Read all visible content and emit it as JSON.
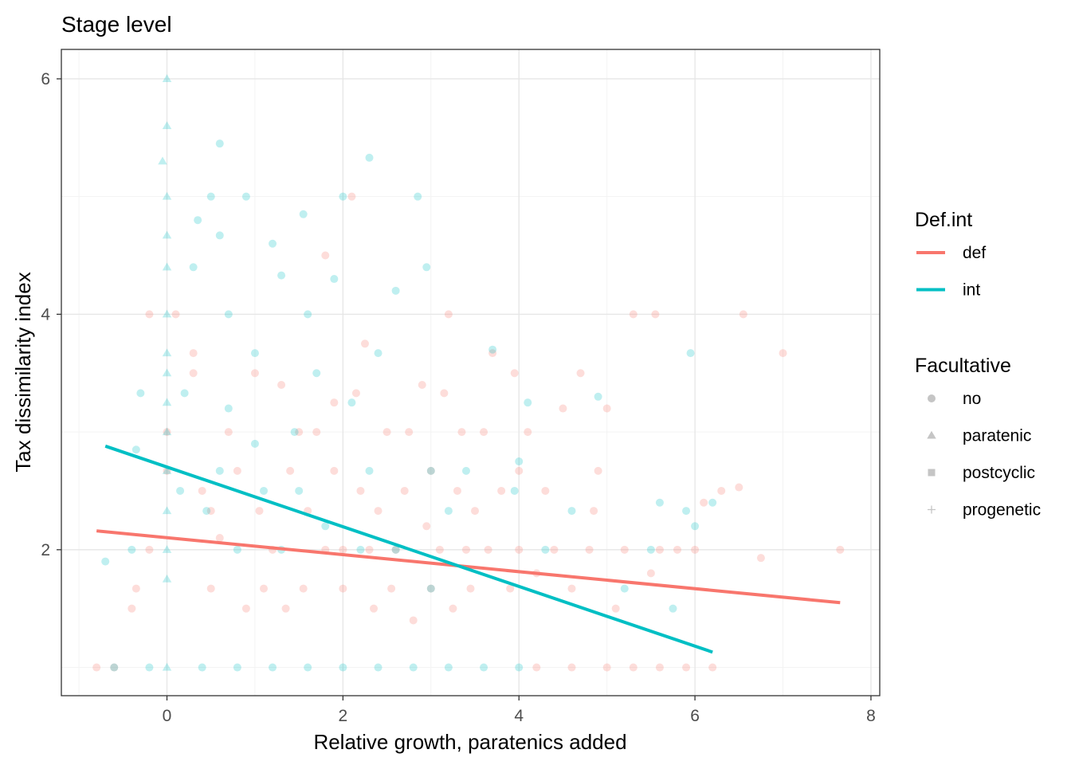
{
  "chart_data": {
    "type": "scatter",
    "title": "Stage level",
    "xlabel": "Relative growth, paratenics added",
    "ylabel": "Tax dissimilarity index",
    "xlim": [
      -1.2,
      8.1
    ],
    "ylim": [
      0.76,
      6.25
    ],
    "x_ticks": [
      0,
      2,
      4,
      6,
      8
    ],
    "y_ticks": [
      2,
      4,
      6
    ],
    "grid": true,
    "legend_position": "right",
    "colors": {
      "def": "#F8766D",
      "int": "#00BFC4"
    },
    "legends": [
      {
        "title": "Def.int",
        "type": "color",
        "entries": [
          {
            "label": "def",
            "key": "def"
          },
          {
            "label": "int",
            "key": "int"
          }
        ]
      },
      {
        "title": "Facultative",
        "type": "shape",
        "entries": [
          {
            "label": "no",
            "shape": "circle"
          },
          {
            "label": "paratenic",
            "shape": "triangle"
          },
          {
            "label": "postcyclic",
            "shape": "square"
          },
          {
            "label": "progenetic",
            "shape": "plus"
          }
        ]
      }
    ],
    "series": [
      {
        "name": "def",
        "trend": {
          "x": [
            -0.8,
            7.65
          ],
          "y": [
            2.16,
            1.55
          ]
        },
        "points": [
          [
            -0.8,
            1.0
          ],
          [
            -0.6,
            1.0
          ],
          [
            -0.4,
            1.5
          ],
          [
            -0.35,
            1.67
          ],
          [
            -0.2,
            2.0
          ],
          [
            -0.2,
            4.0
          ],
          [
            0.0,
            3.0
          ],
          [
            0.0,
            2.67
          ],
          [
            0.1,
            4.0
          ],
          [
            0.3,
            3.67
          ],
          [
            0.3,
            3.5
          ],
          [
            0.4,
            2.5
          ],
          [
            0.5,
            2.33
          ],
          [
            0.5,
            1.67
          ],
          [
            0.6,
            2.1
          ],
          [
            0.7,
            3.0
          ],
          [
            0.8,
            2.67
          ],
          [
            0.9,
            1.5
          ],
          [
            1.0,
            3.5
          ],
          [
            1.05,
            2.33
          ],
          [
            1.1,
            1.67
          ],
          [
            1.2,
            2.0
          ],
          [
            1.3,
            3.4
          ],
          [
            1.35,
            1.5
          ],
          [
            1.4,
            2.67
          ],
          [
            1.5,
            3.0
          ],
          [
            1.55,
            1.67
          ],
          [
            1.6,
            2.33
          ],
          [
            1.7,
            3.0
          ],
          [
            1.8,
            2.0
          ],
          [
            1.8,
            4.5
          ],
          [
            1.9,
            2.67
          ],
          [
            1.9,
            3.25
          ],
          [
            2.0,
            2.0
          ],
          [
            2.0,
            1.67
          ],
          [
            2.1,
            5.0
          ],
          [
            2.15,
            3.33
          ],
          [
            2.2,
            2.5
          ],
          [
            2.25,
            3.75
          ],
          [
            2.3,
            2.0
          ],
          [
            2.35,
            1.5
          ],
          [
            2.4,
            2.33
          ],
          [
            2.5,
            3.0
          ],
          [
            2.55,
            1.67
          ],
          [
            2.6,
            2.0
          ],
          [
            2.7,
            2.5
          ],
          [
            2.75,
            3.0
          ],
          [
            2.8,
            1.4
          ],
          [
            2.9,
            3.4
          ],
          [
            2.95,
            2.2
          ],
          [
            3.0,
            1.67
          ],
          [
            3.0,
            2.67
          ],
          [
            3.1,
            2.0
          ],
          [
            3.15,
            3.33
          ],
          [
            3.2,
            4.0
          ],
          [
            3.25,
            1.5
          ],
          [
            3.3,
            2.5
          ],
          [
            3.35,
            3.0
          ],
          [
            3.4,
            2.0
          ],
          [
            3.45,
            1.67
          ],
          [
            3.5,
            2.33
          ],
          [
            3.6,
            3.0
          ],
          [
            3.65,
            2.0
          ],
          [
            3.7,
            3.67
          ],
          [
            3.8,
            2.5
          ],
          [
            3.9,
            1.67
          ],
          [
            3.95,
            3.5
          ],
          [
            4.0,
            2.0
          ],
          [
            4.0,
            2.67
          ],
          [
            4.1,
            3.0
          ],
          [
            4.2,
            1.8
          ],
          [
            4.3,
            2.5
          ],
          [
            4.4,
            2.0
          ],
          [
            4.5,
            3.2
          ],
          [
            4.6,
            1.67
          ],
          [
            4.7,
            3.5
          ],
          [
            4.8,
            2.0
          ],
          [
            4.85,
            2.33
          ],
          [
            4.9,
            2.67
          ],
          [
            5.0,
            3.2
          ],
          [
            5.1,
            1.5
          ],
          [
            5.2,
            2.0
          ],
          [
            5.3,
            4.0
          ],
          [
            5.5,
            1.8
          ],
          [
            5.55,
            4.0
          ],
          [
            5.6,
            2.0
          ],
          [
            5.8,
            2.0
          ],
          [
            6.0,
            2.0
          ],
          [
            6.1,
            2.4
          ],
          [
            6.3,
            2.5
          ],
          [
            6.5,
            2.53
          ],
          [
            6.55,
            4.0
          ],
          [
            6.75,
            1.93
          ],
          [
            7.0,
            3.67
          ],
          [
            7.65,
            2.0
          ],
          [
            4.2,
            1.0
          ],
          [
            4.6,
            1.0
          ],
          [
            5.0,
            1.0
          ],
          [
            5.3,
            1.0
          ],
          [
            5.6,
            1.0
          ],
          [
            5.9,
            1.0
          ],
          [
            6.2,
            1.0
          ]
        ]
      },
      {
        "name": "int",
        "trend": {
          "x": [
            -0.7,
            6.2
          ],
          "y": [
            2.88,
            1.13
          ]
        },
        "points": [
          [
            -0.7,
            1.9
          ],
          [
            -0.6,
            1.0
          ],
          [
            -0.4,
            2.0
          ],
          [
            -0.35,
            2.85
          ],
          [
            -0.3,
            3.33
          ],
          [
            -0.2,
            1.0
          ],
          [
            0.0,
            6.0
          ],
          [
            0.0,
            5.6
          ],
          [
            0.0,
            5.0
          ],
          [
            0.0,
            4.67
          ],
          [
            0.0,
            4.4
          ],
          [
            0.0,
            4.0
          ],
          [
            0.0,
            3.67
          ],
          [
            0.0,
            3.5
          ],
          [
            0.0,
            3.25
          ],
          [
            0.0,
            3.0
          ],
          [
            0.0,
            2.67
          ],
          [
            0.0,
            2.33
          ],
          [
            0.0,
            2.0
          ],
          [
            0.0,
            1.75
          ],
          [
            0.0,
            1.0
          ],
          [
            -0.05,
            5.3
          ],
          [
            0.3,
            4.4
          ],
          [
            0.35,
            4.8
          ],
          [
            0.5,
            5.0
          ],
          [
            0.6,
            5.45
          ],
          [
            0.6,
            4.67
          ],
          [
            0.7,
            4.0
          ],
          [
            0.9,
            5.0
          ],
          [
            1.0,
            3.67
          ],
          [
            1.2,
            4.6
          ],
          [
            1.3,
            4.33
          ],
          [
            1.45,
            3.0
          ],
          [
            1.55,
            4.85
          ],
          [
            1.6,
            4.0
          ],
          [
            1.7,
            3.5
          ],
          [
            1.9,
            4.3
          ],
          [
            2.0,
            5.0
          ],
          [
            2.1,
            3.25
          ],
          [
            2.3,
            2.67
          ],
          [
            2.3,
            5.33
          ],
          [
            2.4,
            3.67
          ],
          [
            2.6,
            4.2
          ],
          [
            2.85,
            5.0
          ],
          [
            2.95,
            4.4
          ],
          [
            3.0,
            2.67
          ],
          [
            3.2,
            2.33
          ],
          [
            3.4,
            2.67
          ],
          [
            3.7,
            3.7
          ],
          [
            3.95,
            2.5
          ],
          [
            4.0,
            2.75
          ],
          [
            4.1,
            3.25
          ],
          [
            4.3,
            2.0
          ],
          [
            4.6,
            2.33
          ],
          [
            4.9,
            3.3
          ],
          [
            5.2,
            1.67
          ],
          [
            5.5,
            2.0
          ],
          [
            5.6,
            2.4
          ],
          [
            5.75,
            1.5
          ],
          [
            5.9,
            2.33
          ],
          [
            5.95,
            3.67
          ],
          [
            6.0,
            2.2
          ],
          [
            6.2,
            2.4
          ],
          [
            0.4,
            1.0
          ],
          [
            0.8,
            1.0
          ],
          [
            1.2,
            1.0
          ],
          [
            1.6,
            1.0
          ],
          [
            2.0,
            1.0
          ],
          [
            2.4,
            1.0
          ],
          [
            2.8,
            1.0
          ],
          [
            3.2,
            1.0
          ],
          [
            3.6,
            1.0
          ],
          [
            4.0,
            1.0
          ],
          [
            0.6,
            2.67
          ],
          [
            0.8,
            2.0
          ],
          [
            1.1,
            2.5
          ],
          [
            1.3,
            2.0
          ],
          [
            0.2,
            3.33
          ],
          [
            0.45,
            2.33
          ],
          [
            0.7,
            3.2
          ],
          [
            1.0,
            2.9
          ],
          [
            1.5,
            2.5
          ],
          [
            1.8,
            2.2
          ],
          [
            2.2,
            2.0
          ],
          [
            2.6,
            2.0
          ],
          [
            3.0,
            1.67
          ],
          [
            0.15,
            2.5
          ]
        ]
      }
    ]
  }
}
